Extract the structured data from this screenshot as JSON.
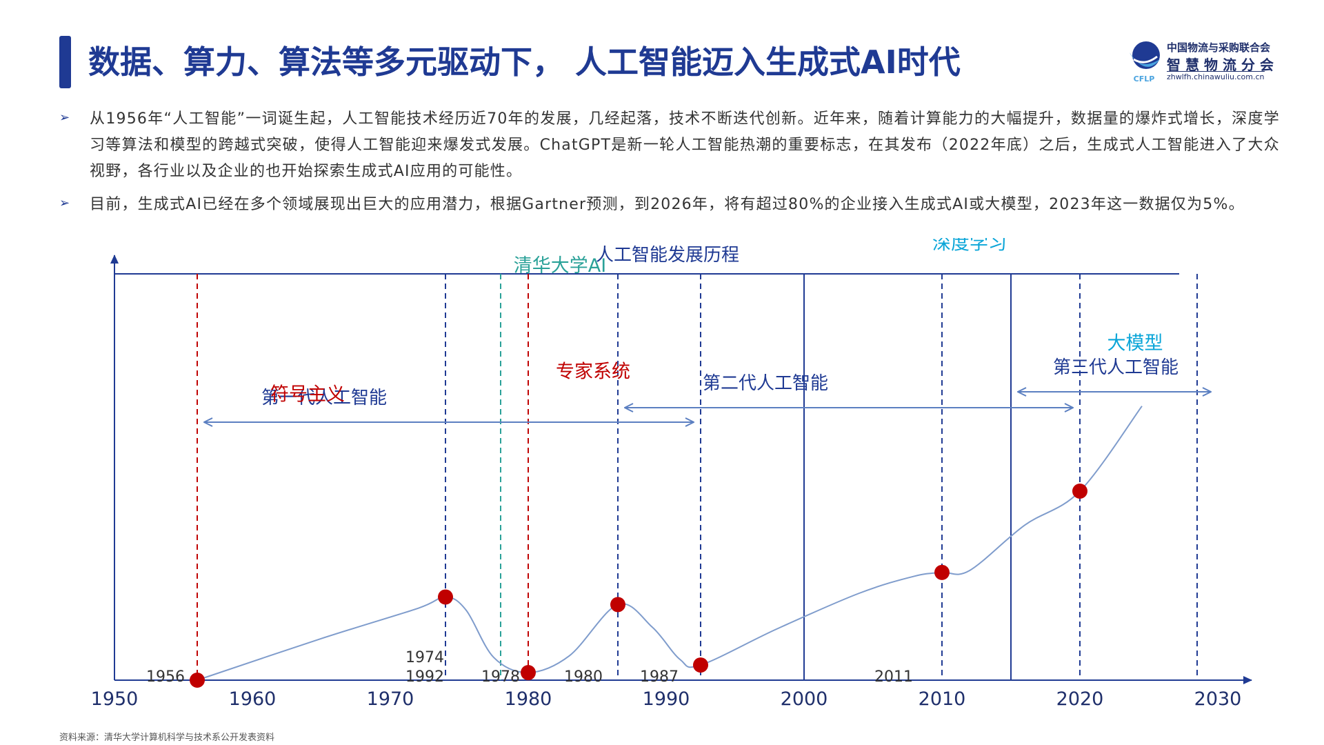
{
  "header": {
    "title": "数据、算力、算法等多元驱动下， 人工智能迈入生成式AI时代"
  },
  "logo": {
    "org": "中国物流与采购联合会",
    "sub": "智慧物流分会",
    "url": "zhwlfh.chinawuliu.com.cn",
    "mark_text": "CFLP"
  },
  "bullets": [
    {
      "icon": "chevron-right-icon",
      "text": "从1956年“人工智能”一词诞生起，人工智能技术经历近70年的发展，几经起落，技术不断迭代创新。近年来，随着计算能力的大幅提升，数据量的爆炸式增长，深度学习等算法和模型的跨越式突破，使得人工智能迎来爆发式发展。ChatGPT是新一轮人工智能热潮的重要标志，在其发布（2022年底）之后，生成式人工智能进入了大众视野，各行业以及企业的也开始探索生成式AI应用的可能性。"
    },
    {
      "icon": "chevron-right-icon",
      "text": "目前，生成式AI已经在多个领域展现出巨大的应用潜力，根据Gartner预测，到2026年，将有超过80%的企业接入生成式AI或大模型，2023年这一数据仅为5%。"
    }
  ],
  "source": "资料来源：清华大学计算机科学与技术系公开发表资料",
  "chart_data": {
    "type": "line",
    "title": "人工智能发展历程",
    "xlim": [
      1950,
      2030
    ],
    "ylim": [
      0,
      100
    ],
    "x_ticks": [
      1950,
      1960,
      1970,
      1980,
      1990,
      2000,
      2010,
      2020,
      2030
    ],
    "grid": false,
    "series": [
      {
        "x": [
          1956,
          1965,
          1972,
          1974,
          1975.5,
          1977.5,
          1980,
          1983,
          1986.5,
          1989,
          1991,
          1992.5,
          1998,
          2004,
          2008,
          2010,
          2012,
          2016,
          2020,
          2024.5
        ],
        "values": [
          0,
          22,
          38,
          44,
          37,
          12,
          4,
          13,
          40,
          28,
          11,
          8,
          27,
          46,
          55,
          57,
          58,
          82,
          100,
          145
        ]
      }
    ],
    "key_points": [
      {
        "x": 1956,
        "y": 0
      },
      {
        "x": 1974,
        "y": 44
      },
      {
        "x": 1980,
        "y": 4
      },
      {
        "x": 1986.5,
        "y": 40
      },
      {
        "x": 1992.5,
        "y": 8
      },
      {
        "x": 2010,
        "y": 57
      },
      {
        "x": 2020,
        "y": 100
      }
    ],
    "vlines": [
      {
        "x": 1956,
        "style": "dashed",
        "color": "#c00000"
      },
      {
        "x": 1974,
        "style": "dashed",
        "color": "#1f3a93"
      },
      {
        "x": 1978,
        "style": "dashed",
        "color": "#2aa198"
      },
      {
        "x": 1980,
        "style": "dashed",
        "color": "#c00000"
      },
      {
        "x": 1986.5,
        "style": "dashed",
        "color": "#1f3a93"
      },
      {
        "x": 1992.5,
        "style": "dashed",
        "color": "#1f3a93"
      },
      {
        "x": 2000,
        "style": "solid",
        "color": "#1f3a93"
      },
      {
        "x": 2010,
        "style": "dashed",
        "color": "#1f3a93"
      },
      {
        "x": 2015,
        "style": "solid",
        "color": "#1f3a93"
      },
      {
        "x": 2020,
        "style": "dashed",
        "color": "#1f3a93"
      },
      {
        "x": 2028.5,
        "style": "dashed",
        "color": "#1f3a93"
      }
    ],
    "year_labels": [
      {
        "text": "1956",
        "x": 1953.7,
        "row": 1
      },
      {
        "text": "1974",
        "x": 1972.5,
        "row": 0
      },
      {
        "text": "1992",
        "x": 1972.5,
        "row": 1
      },
      {
        "text": "1978",
        "x": 1978,
        "row": 1
      },
      {
        "text": "1980",
        "x": 1984,
        "row": 1
      },
      {
        "text": "1987",
        "x": 1989.5,
        "row": 1
      },
      {
        "text": "2011",
        "x": 2006.5,
        "row": 1
      }
    ],
    "eras": [
      {
        "label": "第一代人工智能",
        "from": 1956.5,
        "to": 1992,
        "y_level": 1
      },
      {
        "label": "第二代人工智能",
        "from": 1987,
        "to": 2019.5,
        "y_level": 2
      },
      {
        "label": "第三代人工智能",
        "from": 2015.5,
        "to": 2029.5,
        "y_level": 3
      }
    ],
    "annotations": [
      {
        "text": "符号主义",
        "x": 1964,
        "y": 148,
        "color": "#c00000"
      },
      {
        "text": "清华大学AI",
        "x": 1982.3,
        "y": 216,
        "color": "#2aa198"
      },
      {
        "text": "专家系统",
        "x": 1984.7,
        "y": 160,
        "color": "#c00000"
      },
      {
        "text": "深度学习",
        "x": 2012,
        "y": 228,
        "color": "#0aa5d8"
      },
      {
        "text": "大模型",
        "x": 2024,
        "y": 175,
        "color": "#0aa5d8"
      }
    ],
    "colors": {
      "axis": "#1f3a93",
      "curve": "#7f9ccc",
      "point": "#c00000",
      "era": "#5b7fc1"
    }
  }
}
